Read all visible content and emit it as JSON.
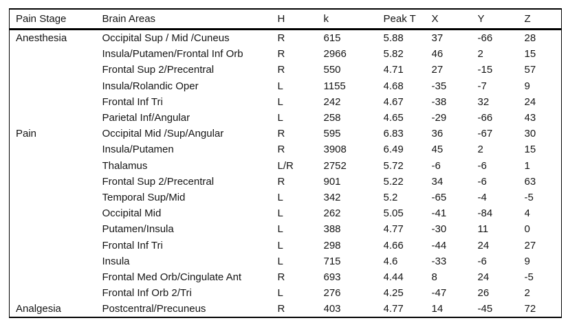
{
  "page": {
    "background": "#ffffff",
    "text_color": "#141414",
    "rule_color": "#000000"
  },
  "table": {
    "columns": [
      "Pain Stage",
      "Brain Areas",
      "H",
      "k",
      "Peak T",
      "X",
      "Y",
      "Z"
    ],
    "rows": [
      [
        "Anesthesia",
        "Occipital Sup / Mid /Cuneus",
        "R",
        "615",
        "5.88",
        "37",
        "-66",
        "28"
      ],
      [
        "",
        "Insula/Putamen/Frontal Inf Orb",
        "R",
        "2966",
        "5.82",
        "46",
        "2",
        "15"
      ],
      [
        "",
        "Frontal Sup 2/Precentral",
        "R",
        "550",
        "4.71",
        "27",
        "-15",
        "57"
      ],
      [
        "",
        "Insula/Rolandic Oper",
        "L",
        "1155",
        "4.68",
        "-35",
        "-7",
        "9"
      ],
      [
        "",
        "Frontal Inf Tri",
        "L",
        "242",
        "4.67",
        "-38",
        "32",
        "24"
      ],
      [
        "",
        "Parietal Inf/Angular",
        "L",
        "258",
        "4.65",
        "-29",
        "-66",
        "43"
      ],
      [
        "Pain",
        "Occipital Mid /Sup/Angular",
        "R",
        "595",
        "6.83",
        "36",
        "-67",
        "30"
      ],
      [
        "",
        "Insula/Putamen",
        "R",
        "3908",
        "6.49",
        "45",
        "2",
        "15"
      ],
      [
        "",
        "Thalamus",
        "L/R",
        "2752",
        "5.72",
        "-6",
        "-6",
        "1"
      ],
      [
        "",
        "Frontal Sup 2/Precentral",
        "R",
        "901",
        "5.22",
        "34",
        "-6",
        "63"
      ],
      [
        "",
        "Temporal Sup/Mid",
        "L",
        "342",
        "5.2",
        "-65",
        "-4",
        "-5"
      ],
      [
        "",
        "Occipital Mid",
        "L",
        "262",
        "5.05",
        "-41",
        "-84",
        "4"
      ],
      [
        "",
        "Putamen/Insula",
        "L",
        "388",
        "4.77",
        "-30",
        "11",
        "0"
      ],
      [
        "",
        "Frontal Inf Tri",
        "L",
        "298",
        "4.66",
        "-44",
        "24",
        "27"
      ],
      [
        "",
        "Insula",
        "L",
        "715",
        "4.6",
        "-33",
        "-6",
        "9"
      ],
      [
        "",
        "Frontal Med Orb/Cingulate Ant",
        "R",
        "693",
        "4.44",
        "8",
        "24",
        "-5"
      ],
      [
        "",
        "Frontal Inf Orb 2/Tri",
        "L",
        "276",
        "4.25",
        "-47",
        "26",
        "2"
      ],
      [
        "Analgesia",
        "Postcentral/Precuneus",
        "R",
        "403",
        "4.77",
        "14",
        "-45",
        "72"
      ]
    ]
  }
}
